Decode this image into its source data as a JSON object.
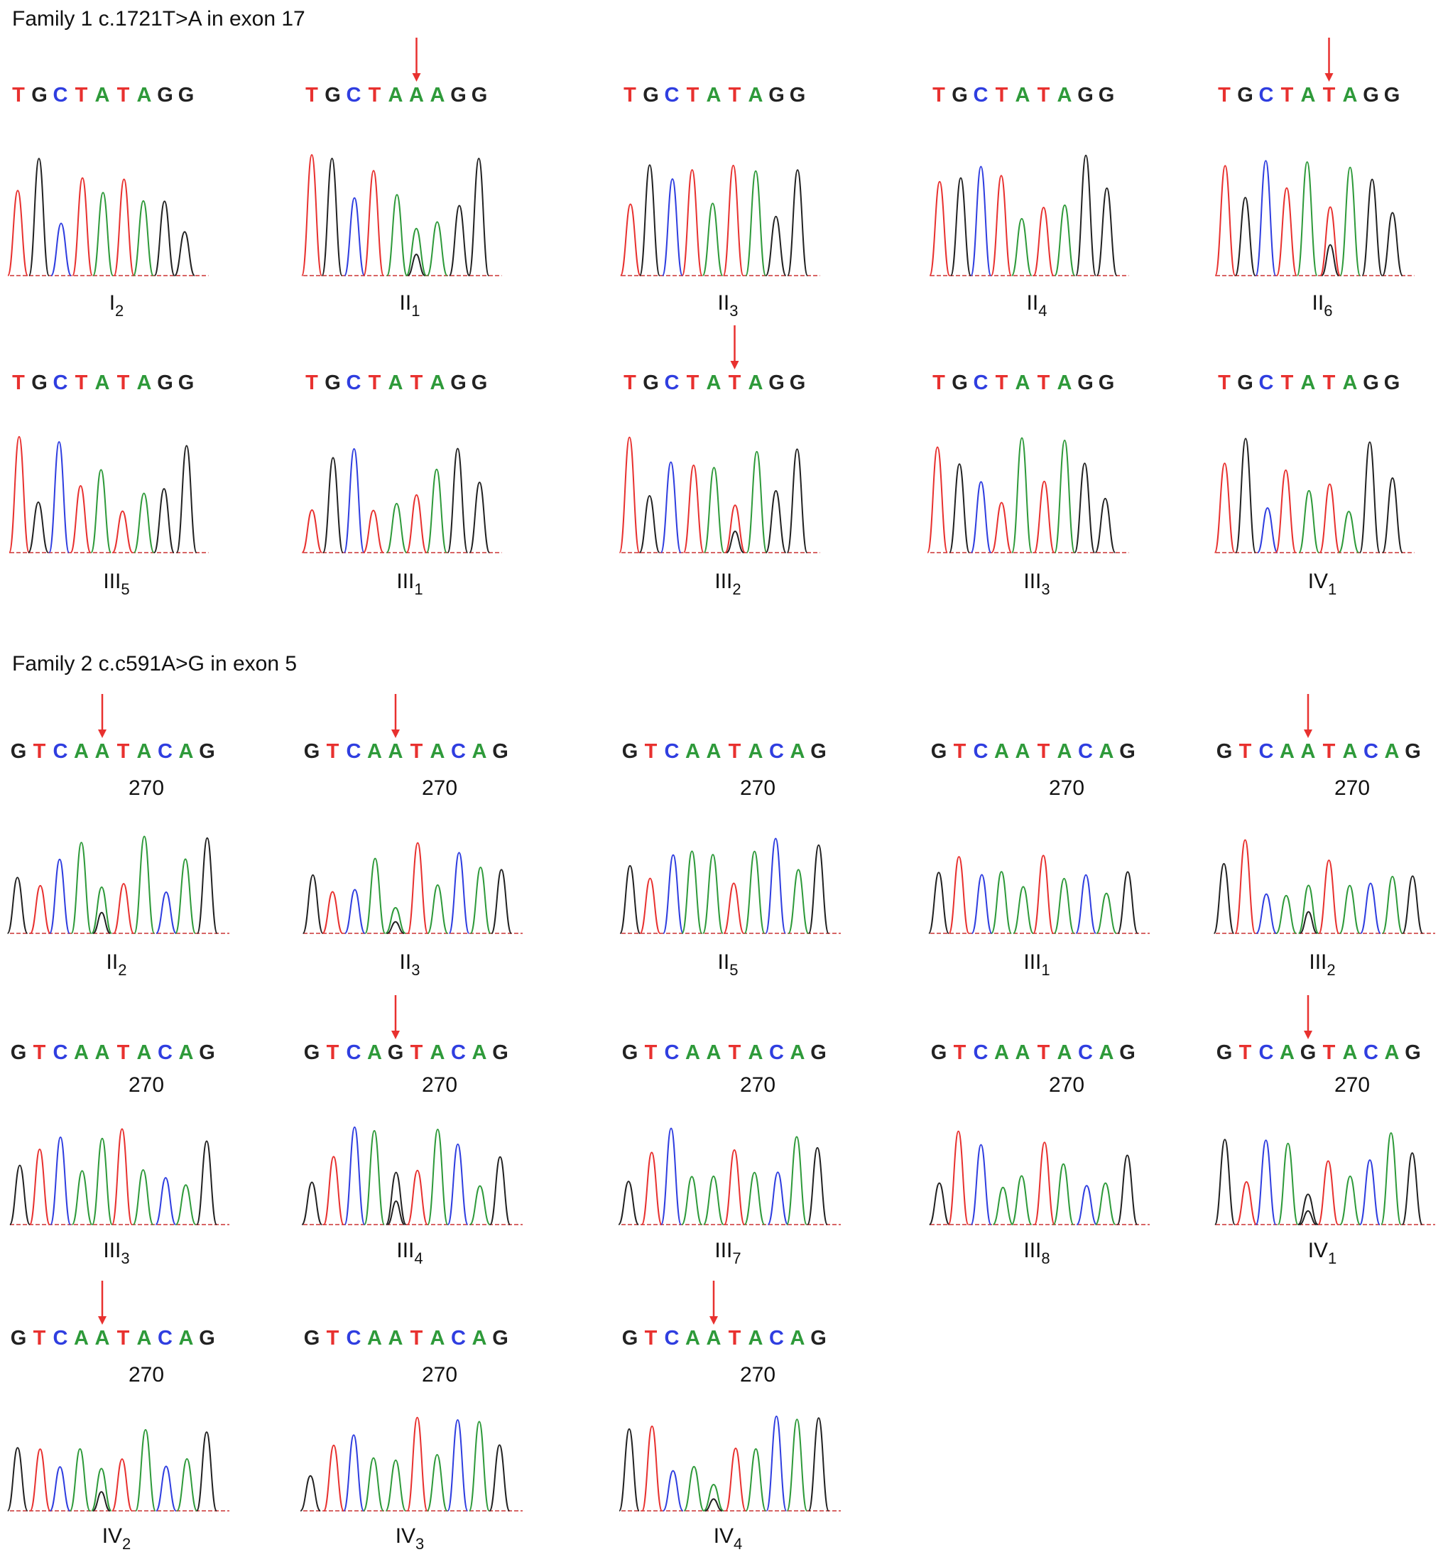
{
  "base_colors": {
    "A": "#2e9a3a",
    "C": "#2f3ee0",
    "G": "#222222",
    "T": "#e8312f"
  },
  "families": [
    {
      "title": "Family 1 c.1721T>A in exon 17",
      "panels": [
        {
          "sequence": [
            "T",
            "G",
            "C",
            "T",
            "A",
            "T",
            "A",
            "G",
            "G"
          ],
          "label": {
            "main": "I",
            "sub": "2"
          }
        },
        {
          "sequence": [
            "T",
            "G",
            "C",
            "T",
            "A",
            "A",
            "A",
            "G",
            "G"
          ],
          "label": {
            "main": "II",
            "sub": "1"
          },
          "marked": 5
        },
        {
          "sequence": [
            "T",
            "G",
            "C",
            "T",
            "A",
            "T",
            "A",
            "G",
            "G"
          ],
          "label": {
            "main": "II",
            "sub": "3"
          }
        },
        {
          "sequence": [
            "T",
            "G",
            "C",
            "T",
            "A",
            "T",
            "A",
            "G",
            "G"
          ],
          "label": {
            "main": "II",
            "sub": "4"
          }
        },
        {
          "sequence": [
            "T",
            "G",
            "C",
            "T",
            "A",
            "T",
            "A",
            "G",
            "G"
          ],
          "label": {
            "main": "II",
            "sub": "6"
          },
          "marked": 5
        },
        {
          "sequence": [
            "T",
            "G",
            "C",
            "T",
            "A",
            "T",
            "A",
            "G",
            "G"
          ],
          "label": {
            "main": "III",
            "sub": "5"
          }
        },
        {
          "sequence": [
            "T",
            "G",
            "C",
            "T",
            "A",
            "T",
            "A",
            "G",
            "G"
          ],
          "label": {
            "main": "III",
            "sub": "1"
          }
        },
        {
          "sequence": [
            "T",
            "G",
            "C",
            "T",
            "A",
            "T",
            "A",
            "G",
            "G"
          ],
          "label": {
            "main": "III",
            "sub": "2"
          },
          "marked": 5
        },
        {
          "sequence": [
            "T",
            "G",
            "C",
            "T",
            "A",
            "T",
            "A",
            "G",
            "G"
          ],
          "label": {
            "main": "III",
            "sub": "3"
          }
        },
        {
          "sequence": [
            "T",
            "G",
            "C",
            "T",
            "A",
            "T",
            "A",
            "G",
            "G"
          ],
          "label": {
            "main": "IV",
            "sub": "1"
          }
        }
      ]
    },
    {
      "title": "Family 2 c.c591A>G in exon 5",
      "panels": [
        {
          "sequence": [
            "G",
            "T",
            "C",
            "A",
            "A",
            "T",
            "A",
            "C",
            "A",
            "G"
          ],
          "position": "270",
          "label": {
            "main": "II",
            "sub": "2"
          },
          "marked": 4
        },
        {
          "sequence": [
            "G",
            "T",
            "C",
            "A",
            "A",
            "T",
            "A",
            "C",
            "A",
            "G"
          ],
          "position": "270",
          "label": {
            "main": "II",
            "sub": "3"
          },
          "marked": 4
        },
        {
          "sequence": [
            "G",
            "T",
            "C",
            "A",
            "A",
            "T",
            "A",
            "C",
            "A",
            "G"
          ],
          "position": "270",
          "label": {
            "main": "II",
            "sub": "5"
          }
        },
        {
          "sequence": [
            "G",
            "T",
            "C",
            "A",
            "A",
            "T",
            "A",
            "C",
            "A",
            "G"
          ],
          "position": "270",
          "label": {
            "main": "III",
            "sub": "1"
          }
        },
        {
          "sequence": [
            "G",
            "T",
            "C",
            "A",
            "A",
            "T",
            "A",
            "C",
            "A",
            "G"
          ],
          "position": "270",
          "label": {
            "main": "III",
            "sub": "2"
          },
          "marked": 4
        },
        {
          "sequence": [
            "G",
            "T",
            "C",
            "A",
            "A",
            "T",
            "A",
            "C",
            "A",
            "G"
          ],
          "position": "270",
          "label": {
            "main": "III",
            "sub": "3"
          }
        },
        {
          "sequence": [
            "G",
            "T",
            "C",
            "A",
            "G",
            "T",
            "A",
            "C",
            "A",
            "G"
          ],
          "position": "270",
          "label": {
            "main": "III",
            "sub": "4"
          },
          "marked": 4
        },
        {
          "sequence": [
            "G",
            "T",
            "C",
            "A",
            "A",
            "T",
            "A",
            "C",
            "A",
            "G"
          ],
          "position": "270",
          "label": {
            "main": "III",
            "sub": "7"
          }
        },
        {
          "sequence": [
            "G",
            "T",
            "C",
            "A",
            "A",
            "T",
            "A",
            "C",
            "A",
            "G"
          ],
          "position": "270",
          "label": {
            "main": "III",
            "sub": "8"
          }
        },
        {
          "sequence": [
            "G",
            "T",
            "C",
            "A",
            "G",
            "T",
            "A",
            "C",
            "A",
            "G"
          ],
          "position": "270",
          "label": {
            "main": "IV",
            "sub": "1"
          },
          "marked": 4
        },
        {
          "sequence": [
            "G",
            "T",
            "C",
            "A",
            "A",
            "T",
            "A",
            "C",
            "A",
            "G"
          ],
          "position": "270",
          "label": {
            "main": "IV",
            "sub": "2"
          },
          "marked": 4
        },
        {
          "sequence": [
            "G",
            "T",
            "C",
            "A",
            "A",
            "T",
            "A",
            "C",
            "A",
            "G"
          ],
          "position": "270",
          "label": {
            "main": "IV",
            "sub": "3"
          }
        },
        {
          "sequence": [
            "G",
            "T",
            "C",
            "A",
            "A",
            "T",
            "A",
            "C",
            "A",
            "G"
          ],
          "position": "270",
          "label": {
            "main": "IV",
            "sub": "4"
          },
          "marked": 4
        }
      ]
    }
  ]
}
